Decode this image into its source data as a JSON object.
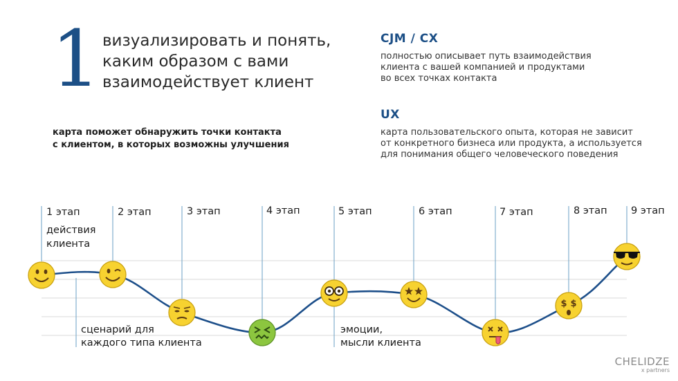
{
  "header": {
    "number": "1",
    "lines": [
      "визуализировать и понять,",
      "каким образом с вами",
      "взаимодействует клиент"
    ],
    "note_lines": [
      "карта поможет обнаружить точки контакта",
      "с клиентом, в которых возможны улучшения"
    ]
  },
  "sections": [
    {
      "title": "CJM / CX",
      "lines": [
        "полностью описывает путь взаимодействия",
        "клиента с вашей компанией и продуктами",
        "во всех точках контакта"
      ]
    },
    {
      "title": "UX",
      "lines": [
        "карта пользовательского опыта, которая не зависит",
        "от конкретного бизнеса или продукта, а используется",
        "для понимания общего человеческого поведения"
      ]
    }
  ],
  "stages": [
    {
      "label": "1 этап",
      "emoji": "smile-icon"
    },
    {
      "label": "2 этап",
      "emoji": "wink-icon"
    },
    {
      "label": "3 этап",
      "emoji": "unamused-icon"
    },
    {
      "label": "4 этап",
      "emoji": "confounded-icon"
    },
    {
      "label": "5 этап",
      "emoji": "nerd-icon"
    },
    {
      "label": "6 этап",
      "emoji": "star-eyes-icon"
    },
    {
      "label": "7 этап",
      "emoji": "dizzy-tongue-icon"
    },
    {
      "label": "8 этап",
      "emoji": "money-eyes-icon"
    },
    {
      "label": "9 этап",
      "emoji": "sunglasses-icon"
    }
  ],
  "annotations": {
    "actions": [
      "действия",
      "клиента"
    ],
    "scenario": [
      "сценарий для",
      "каждого типа клиента"
    ],
    "emotions": [
      "эмоции,",
      "мысли клиента"
    ]
  },
  "colors": {
    "accent": "#1c4f86",
    "curve": "#1d4f8a",
    "emoji": "#f7d230"
  },
  "logo": {
    "main": "CHELIDZE",
    "sub": "x partners"
  }
}
